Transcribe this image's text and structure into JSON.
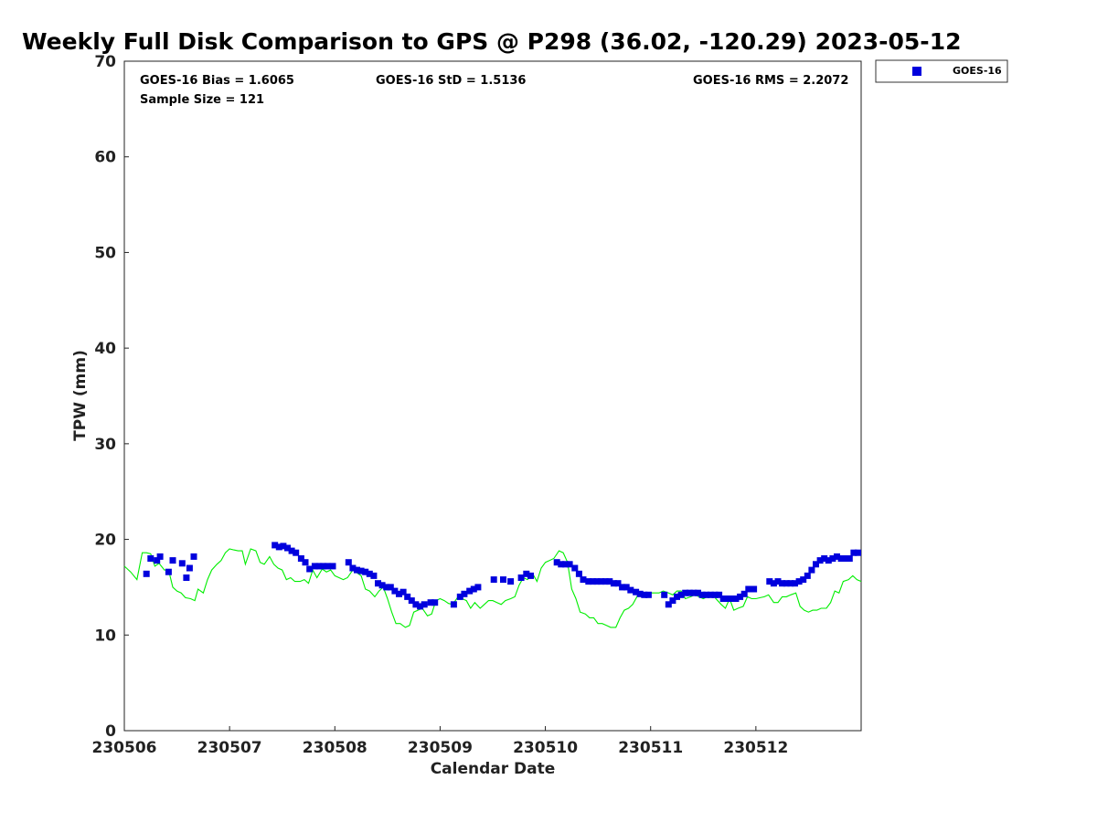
{
  "chart_data": {
    "type": "scatter",
    "title": "Weekly Full Disk Comparison to GPS @ P298 (36.02, -120.29) 2023-05-12",
    "xlabel": "Calendar Date",
    "ylabel": "TPW (mm)",
    "xlim": [
      0,
      7
    ],
    "ylim": [
      0,
      70
    ],
    "x_tick_values": [
      0,
      1,
      2,
      3,
      4,
      5,
      6
    ],
    "x_tick_labels": [
      "230506",
      "230507",
      "230508",
      "230509",
      "230510",
      "230511",
      "230512"
    ],
    "y_tick_values": [
      0,
      10,
      20,
      30,
      40,
      50,
      60,
      70
    ],
    "y_tick_labels": [
      "0",
      "10",
      "20",
      "30",
      "40",
      "50",
      "60",
      "70"
    ],
    "grid": false,
    "legend_position": "outside-top-right",
    "stats": {
      "bias": "GOES-16 Bias = 1.6065",
      "std": "GOES-16 StD = 1.5136",
      "rms": "GOES-16 RMS = 2.2072",
      "sample": "Sample Size = 121"
    },
    "series": [
      {
        "name": "GOES-16",
        "kind": "markers",
        "color": "#0000dd",
        "points": [
          [
            0.21,
            16.4
          ],
          [
            0.25,
            18.0
          ],
          [
            0.31,
            17.8
          ],
          [
            0.34,
            18.2
          ],
          [
            0.42,
            16.6
          ],
          [
            0.46,
            17.8
          ],
          [
            0.55,
            17.5
          ],
          [
            0.59,
            16.0
          ],
          [
            0.62,
            17.0
          ],
          [
            0.66,
            18.2
          ],
          [
            1.43,
            19.4
          ],
          [
            1.47,
            19.2
          ],
          [
            1.51,
            19.3
          ],
          [
            1.55,
            19.1
          ],
          [
            1.59,
            18.8
          ],
          [
            1.63,
            18.6
          ],
          [
            1.68,
            18.0
          ],
          [
            1.72,
            17.6
          ],
          [
            1.76,
            16.9
          ],
          [
            1.81,
            17.2
          ],
          [
            1.85,
            17.2
          ],
          [
            1.89,
            17.2
          ],
          [
            1.93,
            17.2
          ],
          [
            1.98,
            17.2
          ],
          [
            2.13,
            17.6
          ],
          [
            2.17,
            17.0
          ],
          [
            2.21,
            16.8
          ],
          [
            2.25,
            16.7
          ],
          [
            2.29,
            16.6
          ],
          [
            2.33,
            16.4
          ],
          [
            2.37,
            16.2
          ],
          [
            2.41,
            15.4
          ],
          [
            2.45,
            15.2
          ],
          [
            2.49,
            15.0
          ],
          [
            2.53,
            15.0
          ],
          [
            2.57,
            14.6
          ],
          [
            2.61,
            14.3
          ],
          [
            2.65,
            14.5
          ],
          [
            2.69,
            14.0
          ],
          [
            2.73,
            13.6
          ],
          [
            2.77,
            13.2
          ],
          [
            2.81,
            13.0
          ],
          [
            2.85,
            13.2
          ],
          [
            2.91,
            13.4
          ],
          [
            2.95,
            13.4
          ],
          [
            3.13,
            13.2
          ],
          [
            3.19,
            14.0
          ],
          [
            3.23,
            14.3
          ],
          [
            3.28,
            14.6
          ],
          [
            3.32,
            14.8
          ],
          [
            3.36,
            15.0
          ],
          [
            3.51,
            15.8
          ],
          [
            3.6,
            15.8
          ],
          [
            3.67,
            15.6
          ],
          [
            3.77,
            16.0
          ],
          [
            3.82,
            16.4
          ],
          [
            3.86,
            16.2
          ],
          [
            4.11,
            17.6
          ],
          [
            4.15,
            17.4
          ],
          [
            4.19,
            17.4
          ],
          [
            4.23,
            17.4
          ],
          [
            4.28,
            17.0
          ],
          [
            4.32,
            16.4
          ],
          [
            4.36,
            15.8
          ],
          [
            4.41,
            15.6
          ],
          [
            4.45,
            15.6
          ],
          [
            4.49,
            15.6
          ],
          [
            4.53,
            15.6
          ],
          [
            4.57,
            15.6
          ],
          [
            4.61,
            15.6
          ],
          [
            4.65,
            15.4
          ],
          [
            4.69,
            15.4
          ],
          [
            4.73,
            15.0
          ],
          [
            4.77,
            15.0
          ],
          [
            4.81,
            14.7
          ],
          [
            4.86,
            14.5
          ],
          [
            4.9,
            14.3
          ],
          [
            4.94,
            14.2
          ],
          [
            4.98,
            14.2
          ],
          [
            5.13,
            14.2
          ],
          [
            5.17,
            13.2
          ],
          [
            5.21,
            13.6
          ],
          [
            5.25,
            14.0
          ],
          [
            5.29,
            14.2
          ],
          [
            5.33,
            14.4
          ],
          [
            5.37,
            14.4
          ],
          [
            5.41,
            14.4
          ],
          [
            5.45,
            14.4
          ],
          [
            5.49,
            14.2
          ],
          [
            5.53,
            14.2
          ],
          [
            5.57,
            14.2
          ],
          [
            5.61,
            14.2
          ],
          [
            5.65,
            14.2
          ],
          [
            5.69,
            13.8
          ],
          [
            5.73,
            13.8
          ],
          [
            5.77,
            13.8
          ],
          [
            5.81,
            13.8
          ],
          [
            5.85,
            14.0
          ],
          [
            5.89,
            14.3
          ],
          [
            5.93,
            14.8
          ],
          [
            5.98,
            14.8
          ],
          [
            6.13,
            15.6
          ],
          [
            6.17,
            15.4
          ],
          [
            6.21,
            15.6
          ],
          [
            6.25,
            15.4
          ],
          [
            6.29,
            15.4
          ],
          [
            6.33,
            15.4
          ],
          [
            6.37,
            15.4
          ],
          [
            6.41,
            15.6
          ],
          [
            6.45,
            15.8
          ],
          [
            6.49,
            16.2
          ],
          [
            6.53,
            16.8
          ],
          [
            6.57,
            17.4
          ],
          [
            6.61,
            17.8
          ],
          [
            6.65,
            18.0
          ],
          [
            6.69,
            17.8
          ],
          [
            6.73,
            18.0
          ],
          [
            6.77,
            18.2
          ],
          [
            6.81,
            18.0
          ],
          [
            6.85,
            18.0
          ],
          [
            6.89,
            18.0
          ],
          [
            6.93,
            18.6
          ],
          [
            6.97,
            18.6
          ]
        ]
      },
      {
        "name": "",
        "kind": "line",
        "color": "#00ee00",
        "points": [
          [
            0.0,
            17.2
          ],
          [
            0.06,
            16.6
          ],
          [
            0.12,
            15.8
          ],
          [
            0.17,
            18.6
          ],
          [
            0.21,
            18.6
          ],
          [
            0.25,
            18.5
          ],
          [
            0.29,
            17.2
          ],
          [
            0.33,
            17.5
          ],
          [
            0.38,
            16.8
          ],
          [
            0.42,
            16.8
          ],
          [
            0.46,
            15.0
          ],
          [
            0.5,
            14.6
          ],
          [
            0.54,
            14.4
          ],
          [
            0.58,
            13.9
          ],
          [
            0.63,
            13.8
          ],
          [
            0.67,
            13.6
          ],
          [
            0.7,
            14.8
          ],
          [
            0.75,
            14.4
          ],
          [
            0.79,
            15.8
          ],
          [
            0.83,
            16.8
          ],
          [
            0.88,
            17.4
          ],
          [
            0.92,
            17.8
          ],
          [
            0.96,
            18.6
          ],
          [
            1.0,
            19.0
          ],
          [
            1.04,
            18.9
          ],
          [
            1.08,
            18.8
          ],
          [
            1.12,
            18.8
          ],
          [
            1.15,
            17.4
          ],
          [
            1.2,
            19.0
          ],
          [
            1.25,
            18.8
          ],
          [
            1.29,
            17.6
          ],
          [
            1.33,
            17.4
          ],
          [
            1.38,
            18.2
          ],
          [
            1.42,
            17.4
          ],
          [
            1.46,
            17.0
          ],
          [
            1.5,
            16.8
          ],
          [
            1.54,
            15.8
          ],
          [
            1.58,
            16.0
          ],
          [
            1.62,
            15.6
          ],
          [
            1.67,
            15.6
          ],
          [
            1.71,
            15.8
          ],
          [
            1.75,
            15.4
          ],
          [
            1.79,
            16.8
          ],
          [
            1.83,
            16.0
          ],
          [
            1.88,
            16.9
          ],
          [
            1.92,
            16.6
          ],
          [
            1.96,
            16.8
          ],
          [
            2.0,
            16.2
          ],
          [
            2.04,
            16.0
          ],
          [
            2.08,
            15.8
          ],
          [
            2.12,
            16.0
          ],
          [
            2.17,
            16.8
          ],
          [
            2.21,
            16.5
          ],
          [
            2.25,
            16.2
          ],
          [
            2.29,
            14.8
          ],
          [
            2.33,
            14.6
          ],
          [
            2.38,
            14.0
          ],
          [
            2.42,
            14.6
          ],
          [
            2.46,
            15.0
          ],
          [
            2.5,
            13.8
          ],
          [
            2.54,
            12.4
          ],
          [
            2.58,
            11.2
          ],
          [
            2.62,
            11.2
          ],
          [
            2.67,
            10.8
          ],
          [
            2.71,
            11.0
          ],
          [
            2.75,
            12.4
          ],
          [
            2.79,
            12.6
          ],
          [
            2.83,
            12.8
          ],
          [
            2.88,
            12.0
          ],
          [
            2.92,
            12.2
          ],
          [
            2.96,
            13.6
          ],
          [
            3.0,
            13.8
          ],
          [
            3.04,
            13.6
          ],
          [
            3.08,
            13.3
          ],
          [
            3.12,
            13.2
          ],
          [
            3.17,
            14.0
          ],
          [
            3.21,
            13.8
          ],
          [
            3.25,
            13.6
          ],
          [
            3.29,
            12.8
          ],
          [
            3.33,
            13.4
          ],
          [
            3.38,
            12.8
          ],
          [
            3.42,
            13.2
          ],
          [
            3.46,
            13.6
          ],
          [
            3.5,
            13.6
          ],
          [
            3.54,
            13.4
          ],
          [
            3.58,
            13.2
          ],
          [
            3.62,
            13.6
          ],
          [
            3.67,
            13.8
          ],
          [
            3.71,
            14.0
          ],
          [
            3.75,
            15.2
          ],
          [
            3.79,
            16.0
          ],
          [
            3.83,
            15.8
          ],
          [
            3.88,
            16.4
          ],
          [
            3.92,
            15.6
          ],
          [
            3.96,
            17.0
          ],
          [
            4.0,
            17.6
          ],
          [
            4.04,
            17.8
          ],
          [
            4.08,
            18.0
          ],
          [
            4.13,
            18.8
          ],
          [
            4.17,
            18.6
          ],
          [
            4.21,
            17.6
          ],
          [
            4.25,
            14.8
          ],
          [
            4.29,
            13.8
          ],
          [
            4.33,
            12.4
          ],
          [
            4.38,
            12.2
          ],
          [
            4.42,
            11.8
          ],
          [
            4.46,
            11.8
          ],
          [
            4.5,
            11.2
          ],
          [
            4.54,
            11.2
          ],
          [
            4.58,
            11.0
          ],
          [
            4.62,
            10.8
          ],
          [
            4.67,
            10.8
          ],
          [
            4.71,
            11.8
          ],
          [
            4.75,
            12.6
          ],
          [
            4.79,
            12.8
          ],
          [
            4.83,
            13.2
          ],
          [
            4.88,
            14.2
          ],
          [
            4.92,
            14.4
          ],
          [
            4.96,
            14.2
          ],
          [
            5.0,
            14.4
          ],
          [
            5.04,
            14.4
          ],
          [
            5.08,
            14.4
          ],
          [
            5.12,
            14.6
          ],
          [
            5.17,
            14.4
          ],
          [
            5.21,
            14.2
          ],
          [
            5.25,
            14.6
          ],
          [
            5.29,
            14.6
          ],
          [
            5.33,
            13.8
          ],
          [
            5.38,
            14.0
          ],
          [
            5.42,
            14.2
          ],
          [
            5.46,
            14.0
          ],
          [
            5.5,
            13.8
          ],
          [
            5.54,
            14.0
          ],
          [
            5.58,
            14.4
          ],
          [
            5.62,
            13.8
          ],
          [
            5.67,
            13.2
          ],
          [
            5.71,
            12.8
          ],
          [
            5.75,
            13.8
          ],
          [
            5.79,
            12.6
          ],
          [
            5.83,
            12.8
          ],
          [
            5.88,
            13.0
          ],
          [
            5.92,
            14.0
          ],
          [
            5.96,
            13.8
          ],
          [
            6.0,
            13.8
          ],
          [
            6.04,
            13.9
          ],
          [
            6.08,
            14.0
          ],
          [
            6.12,
            14.2
          ],
          [
            6.17,
            13.4
          ],
          [
            6.21,
            13.4
          ],
          [
            6.25,
            14.0
          ],
          [
            6.29,
            14.0
          ],
          [
            6.33,
            14.2
          ],
          [
            6.38,
            14.4
          ],
          [
            6.42,
            13.0
          ],
          [
            6.46,
            12.6
          ],
          [
            6.5,
            12.4
          ],
          [
            6.54,
            12.6
          ],
          [
            6.58,
            12.6
          ],
          [
            6.62,
            12.8
          ],
          [
            6.67,
            12.8
          ],
          [
            6.71,
            13.4
          ],
          [
            6.75,
            14.6
          ],
          [
            6.79,
            14.4
          ],
          [
            6.83,
            15.6
          ],
          [
            6.88,
            15.8
          ],
          [
            6.92,
            16.2
          ],
          [
            6.96,
            15.8
          ],
          [
            7.0,
            15.6
          ]
        ]
      }
    ]
  },
  "legend": {
    "items": [
      {
        "label": "GOES-16",
        "color": "#0000dd"
      }
    ]
  }
}
